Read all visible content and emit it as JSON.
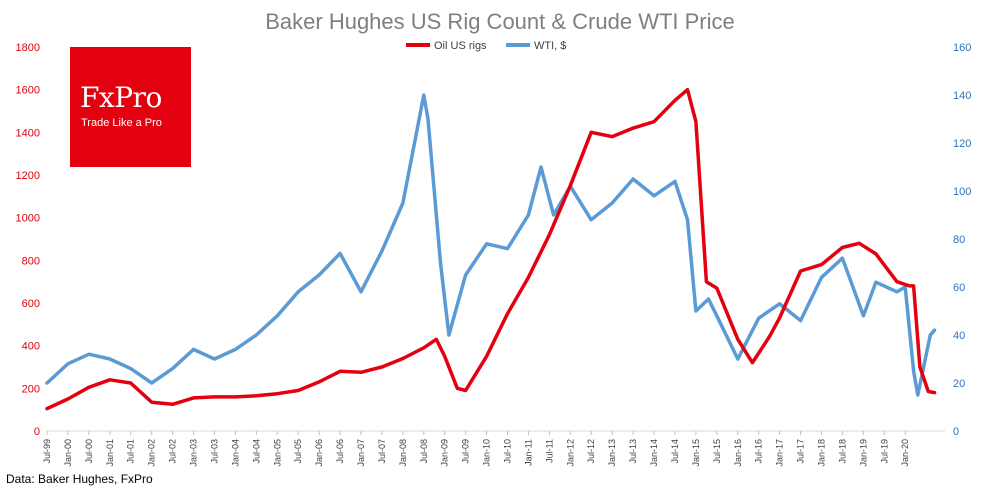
{
  "brand": {
    "name": "FxPro",
    "tagline": "Trade Like a Pro"
  },
  "source": "Data: Baker Hughes, FxPro",
  "colors": {
    "rigs": "#e3000f",
    "wti": "#5b9bd5"
  },
  "chart_data": {
    "type": "line",
    "title": "Baker Hughes US Rig Count & Crude WTI Price",
    "legend_position": "top-right",
    "y_left": {
      "min": 0,
      "max": 1800,
      "step": 200,
      "ticks": [
        "0",
        "200",
        "400",
        "600",
        "800",
        "1000",
        "1200",
        "1400",
        "1600",
        "1800"
      ]
    },
    "y_right": {
      "min": 0,
      "max": 160,
      "step": 20,
      "ticks": [
        "0",
        "20",
        "40",
        "60",
        "80",
        "100",
        "120",
        "140",
        "160"
      ]
    },
    "x_range": [
      1999.5,
      2020.95
    ],
    "x_ticks": [
      "Jul-99",
      "Jan-00",
      "Jul-00",
      "Jan-01",
      "Jul-01",
      "Jan-02",
      "Jul-02",
      "Jan-03",
      "Jul-03",
      "Jan-04",
      "Jul-04",
      "Jan-05",
      "Jul-05",
      "Jan-06",
      "Jul-06",
      "Jan-07",
      "Jul-07",
      "Jan-08",
      "Jul-08",
      "Jan-09",
      "Jul-09",
      "Jan-10",
      "Jul-10",
      "Jan-11",
      "Jul-11",
      "Jan-12",
      "Jul-12",
      "Jan-13",
      "Jul-13",
      "Jan-14",
      "Jul-14",
      "Jan-15",
      "Jul-15",
      "Jan-16",
      "Jul-16",
      "Jan-17",
      "Jul-17",
      "Jan-18",
      "Jul-18",
      "Jan-19",
      "Jul-19",
      "Jan-20"
    ],
    "series": [
      {
        "name": "Oil US rigs",
        "axis": "left",
        "points": [
          [
            1999.5,
            105
          ],
          [
            2000.0,
            150
          ],
          [
            2000.5,
            205
          ],
          [
            2001.0,
            240
          ],
          [
            2001.5,
            225
          ],
          [
            2002.0,
            135
          ],
          [
            2002.5,
            125
          ],
          [
            2003.0,
            155
          ],
          [
            2003.5,
            160
          ],
          [
            2004.0,
            160
          ],
          [
            2004.5,
            165
          ],
          [
            2005.0,
            175
          ],
          [
            2005.5,
            190
          ],
          [
            2006.0,
            230
          ],
          [
            2006.5,
            280
          ],
          [
            2007.0,
            275
          ],
          [
            2007.5,
            300
          ],
          [
            2008.0,
            340
          ],
          [
            2008.5,
            390
          ],
          [
            2008.8,
            430
          ],
          [
            2009.0,
            350
          ],
          [
            2009.3,
            200
          ],
          [
            2009.5,
            190
          ],
          [
            2010.0,
            350
          ],
          [
            2010.5,
            550
          ],
          [
            2011.0,
            720
          ],
          [
            2011.5,
            920
          ],
          [
            2012.0,
            1150
          ],
          [
            2012.5,
            1400
          ],
          [
            2013.0,
            1380
          ],
          [
            2013.5,
            1420
          ],
          [
            2014.0,
            1450
          ],
          [
            2014.5,
            1550
          ],
          [
            2014.8,
            1600
          ],
          [
            2015.0,
            1450
          ],
          [
            2015.25,
            700
          ],
          [
            2015.5,
            670
          ],
          [
            2016.0,
            430
          ],
          [
            2016.35,
            320
          ],
          [
            2016.75,
            440
          ],
          [
            2017.0,
            530
          ],
          [
            2017.5,
            750
          ],
          [
            2018.0,
            780
          ],
          [
            2018.5,
            860
          ],
          [
            2018.9,
            880
          ],
          [
            2019.3,
            830
          ],
          [
            2019.8,
            700
          ],
          [
            2020.1,
            680
          ],
          [
            2020.2,
            680
          ],
          [
            2020.35,
            300
          ],
          [
            2020.55,
            185
          ],
          [
            2020.7,
            180
          ]
        ]
      },
      {
        "name": "WTI, $",
        "axis": "right",
        "points": [
          [
            1999.5,
            20
          ],
          [
            2000.0,
            28
          ],
          [
            2000.5,
            32
          ],
          [
            2001.0,
            30
          ],
          [
            2001.5,
            26
          ],
          [
            2002.0,
            20
          ],
          [
            2002.5,
            26
          ],
          [
            2003.0,
            34
          ],
          [
            2003.5,
            30
          ],
          [
            2004.0,
            34
          ],
          [
            2004.5,
            40
          ],
          [
            2005.0,
            48
          ],
          [
            2005.5,
            58
          ],
          [
            2006.0,
            65
          ],
          [
            2006.5,
            74
          ],
          [
            2007.0,
            58
          ],
          [
            2007.5,
            75
          ],
          [
            2008.0,
            95
          ],
          [
            2008.5,
            140
          ],
          [
            2008.6,
            130
          ],
          [
            2008.9,
            70
          ],
          [
            2009.1,
            40
          ],
          [
            2009.5,
            65
          ],
          [
            2010.0,
            78
          ],
          [
            2010.5,
            76
          ],
          [
            2011.0,
            90
          ],
          [
            2011.3,
            110
          ],
          [
            2011.6,
            90
          ],
          [
            2012.0,
            102
          ],
          [
            2012.5,
            88
          ],
          [
            2013.0,
            95
          ],
          [
            2013.5,
            105
          ],
          [
            2014.0,
            98
          ],
          [
            2014.5,
            104
          ],
          [
            2014.8,
            88
          ],
          [
            2015.0,
            50
          ],
          [
            2015.3,
            55
          ],
          [
            2015.5,
            48
          ],
          [
            2016.0,
            30
          ],
          [
            2016.5,
            47
          ],
          [
            2017.0,
            53
          ],
          [
            2017.5,
            46
          ],
          [
            2018.0,
            64
          ],
          [
            2018.5,
            72
          ],
          [
            2019.0,
            48
          ],
          [
            2019.3,
            62
          ],
          [
            2019.8,
            58
          ],
          [
            2020.0,
            60
          ],
          [
            2020.2,
            25
          ],
          [
            2020.3,
            15
          ],
          [
            2020.6,
            40
          ],
          [
            2020.7,
            42
          ]
        ]
      }
    ]
  }
}
